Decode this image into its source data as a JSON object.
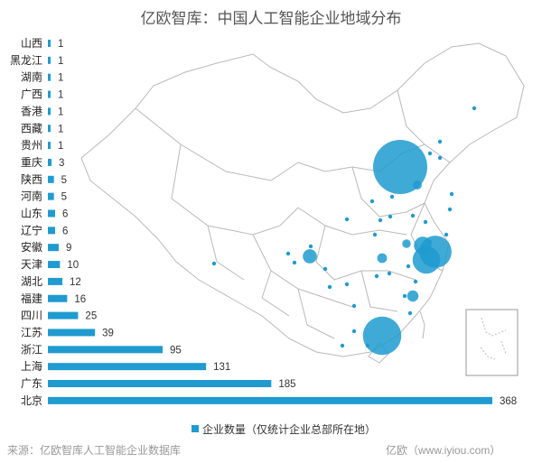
{
  "title": "亿欧智库：中国人工智能企业地域分布",
  "legend_label": "企业数量（仅统计企业总部所在地）",
  "source": "来源：亿欧智库人工智能企业数据库",
  "watermark": "亿欧（www.iyiou.com）",
  "colors": {
    "bar": "#1f9bd0",
    "bubble": "#1f9bd0",
    "map_line": "#b9b9b9"
  },
  "chart_data": {
    "type": "bar",
    "orientation": "horizontal",
    "title": "亿欧智库：中国人工智能企业地域分布",
    "categories": [
      "山西",
      "黑龙江",
      "湖南",
      "广西",
      "香港",
      "西藏",
      "贵州",
      "重庆",
      "陕西",
      "河南",
      "山东",
      "辽宁",
      "安徽",
      "天津",
      "湖北",
      "福建",
      "四川",
      "江苏",
      "浙江",
      "上海",
      "广东",
      "北京"
    ],
    "series": [
      {
        "name": "企业数量（仅统计企业总部所在地）",
        "values": [
          1,
          1,
          1,
          1,
          1,
          1,
          1,
          3,
          5,
          5,
          6,
          6,
          9,
          10,
          12,
          16,
          25,
          39,
          95,
          131,
          185,
          368
        ]
      }
    ],
    "xlim": [
      0,
      368
    ],
    "grid": false,
    "legend_position": "bottom"
  },
  "map_bubbles": [
    {
      "name": "北京",
      "value": 368
    },
    {
      "name": "上海",
      "value": 131
    },
    {
      "name": "广东",
      "value": 185
    },
    {
      "name": "浙江",
      "value": 95
    },
    {
      "name": "江苏",
      "value": 39
    },
    {
      "name": "四川",
      "value": 25
    },
    {
      "name": "福建",
      "value": 16
    },
    {
      "name": "湖北",
      "value": 12
    },
    {
      "name": "天津",
      "value": 10
    },
    {
      "name": "安徽",
      "value": 9
    }
  ]
}
